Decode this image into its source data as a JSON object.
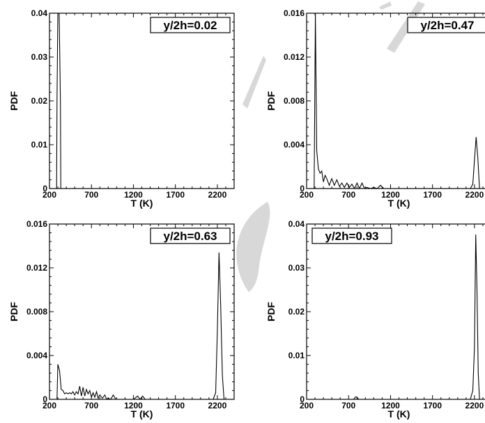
{
  "chart_data": [
    {
      "type": "line",
      "annotation": "y/2h=0.02",
      "xlabel": "T (K)",
      "ylabel": "PDF",
      "xlim": [
        200,
        2400
      ],
      "ylim": [
        0,
        0.04
      ],
      "xticks": [
        200,
        700,
        1200,
        1700,
        2200
      ],
      "yticks": [
        0,
        0.01,
        0.02,
        0.03,
        0.04
      ],
      "ytick_labels": [
        "0",
        "0.01",
        "0.02",
        "0.03",
        "0.04"
      ],
      "annotation_position": "top-right",
      "series": [
        {
          "x": [
            285,
            290,
            300,
            310,
            315,
            330,
            335
          ],
          "y": [
            0,
            0.02,
            0.04,
            0.04,
            0.04,
            0.02,
            0
          ]
        }
      ]
    },
    {
      "type": "line",
      "annotation": "y/2h=0.47",
      "xlabel": "T (K)",
      "ylabel": "PDF",
      "xlim": [
        200,
        2400
      ],
      "ylim": [
        0,
        0.016
      ],
      "xticks": [
        200,
        700,
        1200,
        1700,
        2200
      ],
      "yticks": [
        0,
        0.004,
        0.008,
        0.012,
        0.016
      ],
      "ytick_labels": [
        "0",
        "0.004",
        "0.008",
        "0.012",
        "0.016"
      ],
      "annotation_position": "top-right",
      "series": [
        {
          "x": [
            290,
            305,
            320,
            340,
            360,
            380,
            400,
            420,
            440,
            470,
            500,
            530,
            560,
            590,
            620,
            650,
            680,
            710,
            740,
            770,
            800,
            830,
            860,
            890,
            920,
            960,
            1000,
            1040,
            1080,
            1120,
            1160,
            1300,
            1600,
            1900,
            2150,
            2180,
            2200,
            2220,
            2240,
            2260,
            2400
          ],
          "y": [
            0,
            0.016,
            0.0035,
            0.0018,
            0.0014,
            0.0016,
            0.0006,
            0.0012,
            0.0009,
            0.0003,
            0.0009,
            0.0003,
            0.0008,
            0.0002,
            0.0005,
            0.0001,
            0.0005,
            0.0001,
            0.0004,
            0,
            0.0005,
            0,
            0.0005,
            0,
            0.0001,
            0,
            0.0001,
            0,
            0.0003,
            0,
            0,
            0,
            0,
            0,
            0,
            0.0004,
            0.0026,
            0.0047,
            0.0028,
            0,
            0
          ]
        }
      ]
    },
    {
      "type": "line",
      "annotation": "y/2h=0.63",
      "xlabel": "T (K)",
      "ylabel": "PDF",
      "xlim": [
        200,
        2400
      ],
      "ylim": [
        0,
        0.016
      ],
      "xticks": [
        200,
        700,
        1200,
        1700,
        2200
      ],
      "yticks": [
        0,
        0.004,
        0.008,
        0.012,
        0.016
      ],
      "ytick_labels": [
        "0",
        "0.004",
        "0.008",
        "0.012",
        "0.016"
      ],
      "annotation_position": "top-right",
      "series": [
        {
          "x": [
            290,
            300,
            320,
            340,
            360,
            380,
            400,
            420,
            440,
            460,
            480,
            500,
            520,
            540,
            560,
            580,
            600,
            620,
            640,
            660,
            680,
            700,
            720,
            740,
            760,
            780,
            800,
            830,
            860,
            880,
            900,
            930,
            960,
            990,
            1020,
            1050,
            1100,
            1200,
            1250,
            1280,
            1310,
            1340,
            1370,
            1500,
            1800,
            2100,
            2150,
            2180,
            2200,
            2220,
            2240,
            2260,
            2280,
            2400
          ],
          "y": [
            0,
            0.0032,
            0.0026,
            0.0009,
            0.0008,
            0.0005,
            0.0006,
            0.0005,
            0.0006,
            0.0005,
            0.0007,
            0.0004,
            0.0007,
            0.0005,
            0.0012,
            0.0003,
            0.0011,
            0.0003,
            0.0009,
            0.0005,
            0.0008,
            0.0002,
            0.0006,
            0.0002,
            0.0007,
            0.0001,
            0.0004,
            0.0001,
            0.0004,
            0,
            0.0001,
            0,
            0.0004,
            0,
            0,
            0,
            0,
            0,
            0.0003,
            0,
            0.0003,
            0,
            0,
            0,
            0,
            0,
            0,
            0.0006,
            0.0062,
            0.0134,
            0.0086,
            0.0022,
            0,
            0
          ]
        }
      ]
    },
    {
      "type": "line",
      "annotation": "y/2h=0.93",
      "xlabel": "T (K)",
      "ylabel": "PDF",
      "xlim": [
        200,
        2400
      ],
      "ylim": [
        0,
        0.04
      ],
      "xticks": [
        200,
        700,
        1200,
        1700,
        2200
      ],
      "yticks": [
        0,
        0.01,
        0.02,
        0.03,
        0.04
      ],
      "ytick_labels": [
        "0",
        "0.01",
        "0.02",
        "0.03",
        "0.04"
      ],
      "annotation_position": "top-left",
      "series": [
        {
          "x": [
            200,
            760,
            775,
            790,
            805,
            820,
            1500,
            2150,
            2180,
            2200,
            2215,
            2230,
            2245,
            2260,
            2275,
            2400
          ],
          "y": [
            0,
            0,
            0.0004,
            0.0006,
            0.0004,
            0,
            0,
            0,
            0.002,
            0.012,
            0.0376,
            0.025,
            0.006,
            0,
            0,
            0
          ]
        }
      ]
    }
  ]
}
